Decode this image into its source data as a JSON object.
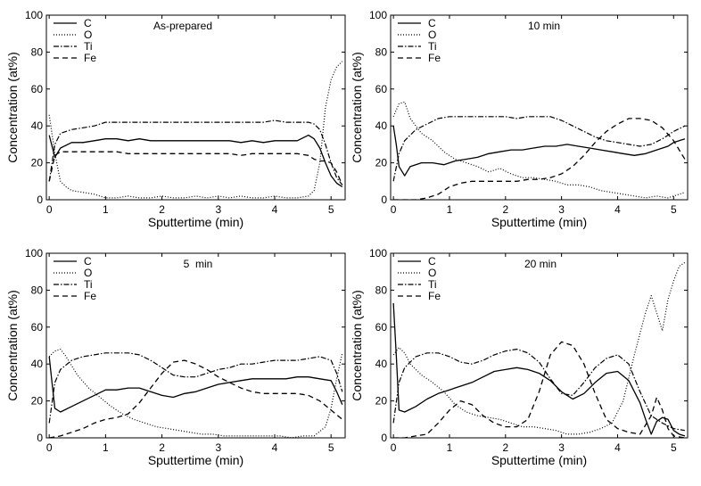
{
  "figure": {
    "xlabel": "Sputtertime (min)",
    "ylabel": "Concentration (at%)"
  },
  "chart_data": [
    {
      "type": "line",
      "title": "As-prepared",
      "xlabel": "Sputtertime (min)",
      "ylabel": "Concentration (at%)",
      "xlim": [
        -0.05,
        5.25
      ],
      "ylim": [
        0,
        100
      ],
      "xticks": [
        0,
        1,
        2,
        3,
        4,
        5
      ],
      "yticks": [
        0,
        20,
        40,
        60,
        80,
        100
      ],
      "legend": "top-left",
      "series": [
        {
          "name": "C",
          "style": "solid",
          "x": [
            0,
            0.1,
            0.2,
            0.4,
            0.6,
            0.8,
            1.0,
            1.2,
            1.4,
            1.6,
            1.8,
            2.0,
            2.2,
            2.4,
            2.6,
            2.8,
            3.0,
            3.2,
            3.4,
            3.6,
            3.8,
            4.0,
            4.2,
            4.4,
            4.6,
            4.7,
            4.8,
            4.9,
            5.0,
            5.1,
            5.2
          ],
          "y": [
            35,
            23,
            28,
            31,
            31,
            32,
            33,
            33,
            32,
            33,
            32,
            32,
            32,
            32,
            32,
            32,
            32,
            32,
            31,
            32,
            31,
            32,
            32,
            32,
            35,
            33,
            28,
            20,
            13,
            9,
            7
          ]
        },
        {
          "name": "O",
          "style": "dotted",
          "x": [
            0,
            0.1,
            0.2,
            0.3,
            0.4,
            0.6,
            0.8,
            1.0,
            1.2,
            1.4,
            1.6,
            1.8,
            2.0,
            2.2,
            2.4,
            2.6,
            2.8,
            3.0,
            3.2,
            3.4,
            3.6,
            3.8,
            4.0,
            4.2,
            4.4,
            4.6,
            4.7,
            4.8,
            4.9,
            5.0,
            5.1,
            5.2
          ],
          "y": [
            46,
            25,
            10,
            7,
            5,
            4,
            3,
            1,
            1,
            2,
            1,
            1,
            2,
            1,
            1,
            2,
            1,
            2,
            1,
            2,
            1,
            1,
            2,
            1,
            1,
            2,
            5,
            20,
            50,
            65,
            72,
            75
          ]
        },
        {
          "name": "Ti",
          "style": "dashdot",
          "x": [
            0,
            0.1,
            0.2,
            0.4,
            0.6,
            0.8,
            1.0,
            1.2,
            1.4,
            1.6,
            1.8,
            2.0,
            2.2,
            2.4,
            2.6,
            2.8,
            3.0,
            3.2,
            3.4,
            3.6,
            3.8,
            4.0,
            4.2,
            4.4,
            4.6,
            4.7,
            4.8,
            4.9,
            5.0,
            5.1,
            5.2
          ],
          "y": [
            10,
            30,
            36,
            38,
            39,
            40,
            42,
            42,
            42,
            42,
            42,
            42,
            42,
            42,
            42,
            42,
            42,
            42,
            42,
            42,
            42,
            43,
            42,
            42,
            42,
            41,
            38,
            30,
            20,
            12,
            8
          ]
        },
        {
          "name": "Fe",
          "style": "dashed",
          "x": [
            0,
            0.1,
            0.2,
            0.4,
            0.6,
            0.8,
            1.0,
            1.2,
            1.4,
            1.6,
            1.8,
            2.0,
            2.2,
            2.4,
            2.6,
            2.8,
            3.0,
            3.2,
            3.4,
            3.6,
            3.8,
            4.0,
            4.2,
            4.4,
            4.6,
            4.7,
            4.8,
            4.9,
            5.0,
            5.1,
            5.2
          ],
          "y": [
            10,
            24,
            26,
            26,
            26,
            26,
            26,
            26,
            25,
            25,
            25,
            25,
            25,
            25,
            25,
            25,
            25,
            25,
            24,
            25,
            25,
            25,
            25,
            25,
            24,
            22,
            21,
            21,
            20,
            15,
            8
          ]
        }
      ]
    },
    {
      "type": "line",
      "title": "10 min",
      "xlabel": "Sputtertime (min)",
      "ylabel": "Concentration (at%)",
      "xlim": [
        -0.05,
        5.25
      ],
      "ylim": [
        0,
        100
      ],
      "xticks": [
        0,
        1,
        2,
        3,
        4,
        5
      ],
      "yticks": [
        0,
        20,
        40,
        60,
        80,
        100
      ],
      "legend": "top-left",
      "series": [
        {
          "name": "C",
          "style": "solid",
          "x": [
            0,
            0.05,
            0.1,
            0.2,
            0.3,
            0.5,
            0.7,
            0.9,
            1.1,
            1.3,
            1.5,
            1.7,
            1.9,
            2.1,
            2.3,
            2.5,
            2.7,
            2.9,
            3.1,
            3.3,
            3.5,
            3.7,
            3.9,
            4.1,
            4.3,
            4.5,
            4.7,
            4.9,
            5.0,
            5.2
          ],
          "y": [
            40,
            30,
            18,
            13,
            18,
            20,
            20,
            19,
            21,
            22,
            23,
            25,
            26,
            27,
            27,
            28,
            29,
            29,
            30,
            29,
            28,
            27,
            26,
            25,
            24,
            25,
            27,
            29,
            31,
            33
          ]
        },
        {
          "name": "O",
          "style": "dotted",
          "x": [
            0,
            0.1,
            0.2,
            0.3,
            0.5,
            0.7,
            0.9,
            1.1,
            1.3,
            1.5,
            1.7,
            1.9,
            2.1,
            2.3,
            2.5,
            2.7,
            2.9,
            3.1,
            3.3,
            3.5,
            3.7,
            3.9,
            4.1,
            4.3,
            4.5,
            4.7,
            4.9,
            5.1,
            5.2
          ],
          "y": [
            45,
            52,
            53,
            44,
            36,
            32,
            26,
            22,
            20,
            18,
            15,
            17,
            14,
            12,
            12,
            11,
            10,
            8,
            8,
            7,
            5,
            4,
            3,
            2,
            1,
            2,
            1,
            3,
            4
          ]
        },
        {
          "name": "Ti",
          "style": "dashdot",
          "x": [
            0,
            0.1,
            0.2,
            0.4,
            0.6,
            0.8,
            1.0,
            1.2,
            1.4,
            1.6,
            1.8,
            2.0,
            2.2,
            2.4,
            2.6,
            2.8,
            3.0,
            3.2,
            3.4,
            3.6,
            3.8,
            4.0,
            4.2,
            4.4,
            4.6,
            4.8,
            5.0,
            5.2
          ],
          "y": [
            10,
            25,
            32,
            38,
            41,
            44,
            45,
            45,
            45,
            45,
            45,
            45,
            44,
            45,
            45,
            45,
            43,
            40,
            37,
            34,
            32,
            31,
            30,
            29,
            30,
            33,
            37,
            40
          ]
        },
        {
          "name": "Fe",
          "style": "dashed",
          "x": [
            0,
            0.2,
            0.4,
            0.6,
            0.8,
            1.0,
            1.2,
            1.4,
            1.6,
            1.8,
            2.0,
            2.2,
            2.4,
            2.6,
            2.8,
            3.0,
            3.2,
            3.4,
            3.6,
            3.8,
            4.0,
            4.2,
            4.4,
            4.6,
            4.8,
            5.0,
            5.2
          ],
          "y": [
            0,
            0,
            0,
            1,
            3,
            7,
            9,
            10,
            10,
            10,
            10,
            10,
            11,
            11,
            12,
            14,
            18,
            24,
            31,
            37,
            41,
            44,
            44,
            43,
            39,
            32,
            22
          ]
        }
      ]
    },
    {
      "type": "line",
      "title": "5  min",
      "xlabel": "Sputtertime (min)",
      "ylabel": "Concentration (at%)",
      "xlim": [
        -0.05,
        5.25
      ],
      "ylim": [
        0,
        100
      ],
      "xticks": [
        0,
        1,
        2,
        3,
        4,
        5
      ],
      "yticks": [
        0,
        20,
        40,
        60,
        80,
        100
      ],
      "legend": "top-left",
      "series": [
        {
          "name": "C",
          "style": "solid",
          "x": [
            0,
            0.05,
            0.1,
            0.2,
            0.4,
            0.6,
            0.8,
            1.0,
            1.2,
            1.4,
            1.6,
            1.8,
            2.0,
            2.2,
            2.4,
            2.6,
            2.8,
            3.0,
            3.2,
            3.4,
            3.6,
            3.8,
            4.0,
            4.2,
            4.4,
            4.6,
            4.8,
            5.0,
            5.1,
            5.2
          ],
          "y": [
            44,
            30,
            16,
            14,
            17,
            20,
            23,
            26,
            26,
            27,
            27,
            25,
            23,
            22,
            24,
            25,
            27,
            29,
            30,
            31,
            32,
            32,
            32,
            32,
            33,
            33,
            32,
            31,
            25,
            18
          ]
        },
        {
          "name": "O",
          "style": "dotted",
          "x": [
            0,
            0.1,
            0.2,
            0.3,
            0.5,
            0.7,
            0.9,
            1.1,
            1.3,
            1.5,
            1.7,
            1.9,
            2.1,
            2.3,
            2.5,
            2.7,
            2.9,
            3.1,
            3.3,
            3.5,
            3.7,
            3.9,
            4.1,
            4.3,
            4.5,
            4.7,
            4.9,
            5.0,
            5.1,
            5.2
          ],
          "y": [
            44,
            47,
            48,
            44,
            34,
            27,
            22,
            17,
            13,
            10,
            8,
            6,
            5,
            4,
            3,
            2,
            2,
            1,
            1,
            1,
            1,
            1,
            1,
            0,
            1,
            1,
            6,
            16,
            32,
            46
          ]
        },
        {
          "name": "Ti",
          "style": "dashdot",
          "x": [
            0,
            0.1,
            0.2,
            0.4,
            0.6,
            0.8,
            1.0,
            1.2,
            1.4,
            1.6,
            1.8,
            2.0,
            2.2,
            2.4,
            2.6,
            2.8,
            3.0,
            3.2,
            3.4,
            3.6,
            3.8,
            4.0,
            4.2,
            4.4,
            4.6,
            4.8,
            5.0,
            5.1,
            5.2
          ],
          "y": [
            8,
            30,
            37,
            42,
            44,
            45,
            46,
            46,
            46,
            45,
            42,
            38,
            34,
            33,
            33,
            35,
            37,
            38,
            40,
            40,
            41,
            42,
            42,
            42,
            43,
            44,
            42,
            35,
            25
          ]
        },
        {
          "name": "Fe",
          "style": "dashed",
          "x": [
            0,
            0.2,
            0.4,
            0.6,
            0.8,
            1.0,
            1.2,
            1.4,
            1.6,
            1.8,
            2.0,
            2.2,
            2.4,
            2.6,
            2.8,
            3.0,
            3.2,
            3.4,
            3.6,
            3.8,
            4.0,
            4.2,
            4.4,
            4.6,
            4.8,
            5.0,
            5.2
          ],
          "y": [
            0,
            1,
            3,
            5,
            8,
            10,
            11,
            13,
            19,
            27,
            35,
            41,
            42,
            40,
            37,
            33,
            30,
            27,
            25,
            24,
            24,
            24,
            24,
            23,
            20,
            15,
            10
          ]
        }
      ]
    },
    {
      "type": "line",
      "title": "20 min",
      "xlabel": "Sputtertime (min)",
      "ylabel": "Concentration (at%)",
      "xlim": [
        -0.05,
        5.25
      ],
      "ylim": [
        0,
        100
      ],
      "xticks": [
        0,
        1,
        2,
        3,
        4,
        5
      ],
      "yticks": [
        0,
        20,
        40,
        60,
        80,
        100
      ],
      "legend": "top-left",
      "series": [
        {
          "name": "C",
          "style": "solid",
          "x": [
            0,
            0.05,
            0.1,
            0.2,
            0.4,
            0.6,
            0.8,
            1.0,
            1.2,
            1.4,
            1.6,
            1.8,
            2.0,
            2.2,
            2.4,
            2.6,
            2.8,
            3.0,
            3.2,
            3.4,
            3.6,
            3.8,
            4.0,
            4.2,
            4.4,
            4.5,
            4.6,
            4.7,
            4.8,
            4.9,
            5.0,
            5.1,
            5.2
          ],
          "y": [
            73,
            45,
            15,
            14,
            17,
            21,
            24,
            26,
            28,
            30,
            33,
            36,
            37,
            38,
            37,
            35,
            31,
            25,
            21,
            24,
            30,
            35,
            36,
            31,
            19,
            10,
            2,
            9,
            11,
            10,
            4,
            2,
            1
          ]
        },
        {
          "name": "O",
          "style": "dotted",
          "x": [
            0,
            0.1,
            0.2,
            0.3,
            0.5,
            0.7,
            0.9,
            1.1,
            1.3,
            1.5,
            1.7,
            1.9,
            2.1,
            2.3,
            2.5,
            2.7,
            2.9,
            3.1,
            3.3,
            3.5,
            3.7,
            3.9,
            4.1,
            4.3,
            4.5,
            4.6,
            4.8,
            4.9,
            5.0,
            5.1,
            5.2
          ],
          "y": [
            45,
            49,
            46,
            40,
            34,
            30,
            25,
            18,
            14,
            12,
            11,
            10,
            8,
            6,
            6,
            5,
            4,
            2,
            2,
            3,
            5,
            8,
            20,
            45,
            68,
            77,
            58,
            75,
            85,
            93,
            95
          ]
        },
        {
          "name": "Ti",
          "style": "dashdot",
          "x": [
            0,
            0.1,
            0.2,
            0.4,
            0.6,
            0.8,
            1.0,
            1.2,
            1.4,
            1.6,
            1.8,
            2.0,
            2.2,
            2.4,
            2.6,
            2.8,
            3.0,
            3.2,
            3.4,
            3.6,
            3.8,
            4.0,
            4.2,
            4.4,
            4.6,
            4.8,
            5.0,
            5.2
          ],
          "y": [
            8,
            30,
            38,
            44,
            46,
            46,
            44,
            41,
            40,
            42,
            45,
            47,
            48,
            46,
            41,
            32,
            24,
            23,
            30,
            38,
            43,
            45,
            40,
            25,
            12,
            8,
            5,
            4
          ]
        },
        {
          "name": "Fe",
          "style": "dashed",
          "x": [
            0,
            0.2,
            0.4,
            0.6,
            0.8,
            1.0,
            1.2,
            1.4,
            1.6,
            1.8,
            2.0,
            2.2,
            2.4,
            2.6,
            2.8,
            3.0,
            3.2,
            3.4,
            3.6,
            3.8,
            4.0,
            4.2,
            4.4,
            4.6,
            4.7,
            4.8,
            4.9,
            5.0,
            5.2
          ],
          "y": [
            0,
            0,
            1,
            2,
            8,
            15,
            20,
            18,
            12,
            8,
            6,
            6,
            10,
            25,
            45,
            52,
            50,
            40,
            24,
            10,
            5,
            3,
            2,
            12,
            22,
            15,
            5,
            1,
            0
          ]
        }
      ]
    }
  ]
}
